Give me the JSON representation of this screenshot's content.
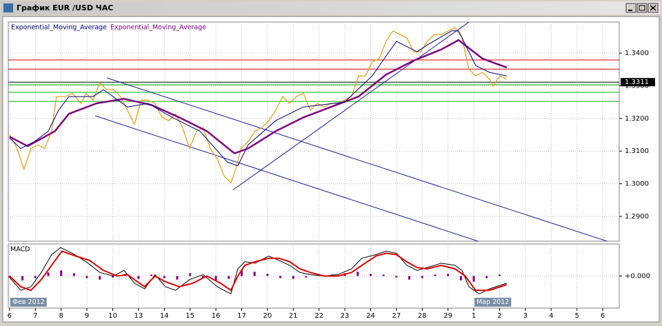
{
  "window": {
    "title": "График EUR /USD ЧАС"
  },
  "chart_data": [
    {
      "type": "line",
      "categories": [
        "6",
        "7",
        "8",
        "9",
        "10",
        "13",
        "14",
        "15",
        "16",
        "17",
        "20",
        "21",
        "22",
        "23",
        "24",
        "27",
        "28",
        "29",
        "1",
        "2",
        "3",
        "4",
        "5",
        "6"
      ],
      "xlim": [
        -0.05,
        23.64
      ],
      "ylim": [
        1.2824,
        1.3495
      ],
      "yticks": [
        {
          "value": 1.34,
          "label": "1.3400"
        },
        {
          "value": 1.33,
          "label": "1.3300"
        },
        {
          "value": 1.32,
          "label": "1.3200"
        },
        {
          "value": 1.31,
          "label": "1.3100"
        },
        {
          "value": 1.3,
          "label": "1.3000"
        },
        {
          "value": 1.29,
          "label": "1.2900"
        }
      ],
      "grid": true,
      "last_price": 1.3311,
      "series": [
        {
          "name": "Exponential_Moving_Average",
          "color": "#000080",
          "x": [
            0,
            0.43,
            0.96,
            1.5,
            1.9,
            2.3,
            3.24,
            3.64,
            4.57,
            5.37,
            6.31,
            7.38,
            8.45,
            8.85,
            9.25,
            10.32,
            11.39,
            12.99,
            14.06,
            15,
            15.8,
            16.2,
            17.14,
            17.41,
            18.07,
            18.61,
            19.28
          ],
          "values": [
            1.314,
            1.3108,
            1.3129,
            1.3161,
            1.3225,
            1.3267,
            1.3267,
            1.3288,
            1.3235,
            1.3246,
            1.3203,
            1.3161,
            1.3066,
            1.3055,
            1.3119,
            1.3193,
            1.3235,
            1.325,
            1.333,
            1.3436,
            1.3404,
            1.3425,
            1.3468,
            1.3468,
            1.3362,
            1.3341,
            1.333
          ]
        },
        {
          "name": "Exponential_Moving_Average",
          "color": "#800080",
          "x": [
            0,
            0.7,
            1.76,
            2.3,
            3.37,
            4.44,
            5.51,
            6.58,
            7.65,
            8.72,
            9.25,
            10.32,
            11.39,
            12.46,
            13.53,
            14.6,
            15.67,
            16.74,
            17.41,
            18.34,
            19.28
          ],
          "values": [
            1.3144,
            1.3115,
            1.3161,
            1.3214,
            1.3246,
            1.326,
            1.3241,
            1.3203,
            1.3161,
            1.3093,
            1.3108,
            1.3161,
            1.3203,
            1.3235,
            1.3267,
            1.3334,
            1.3377,
            1.3411,
            1.344,
            1.3383,
            1.3356
          ]
        },
        {
          "color": "#e8a317",
          "x": [
            0,
            0.29,
            0.56,
            0.83,
            1.1,
            1.36,
            1.63,
            1.82,
            2.17,
            2.43,
            2.78,
            2.97,
            3.24,
            3.5,
            3.77,
            4.04,
            4.3,
            4.57,
            4.84,
            5.11,
            5.37,
            5.64,
            5.91,
            6.18,
            6.44,
            6.71,
            6.98,
            7.25,
            7.51,
            7.78,
            8.05,
            8.32,
            8.58,
            8.77,
            8.98,
            9.25,
            9.52,
            9.79,
            10.05,
            10.32,
            10.59,
            10.86,
            11.12,
            11.39,
            11.66,
            11.93,
            12.19,
            12.46,
            12.73,
            12.99,
            13.26,
            13.53,
            13.8,
            14.06,
            14.33,
            14.6,
            14.87,
            15.13,
            15.4,
            15.67,
            15.94,
            16.2,
            16.47,
            16.74,
            17.01,
            17.27,
            17.54,
            17.81,
            18.07,
            18.34,
            18.61,
            18.74,
            19.01,
            19.28
          ],
          "values": [
            1.3151,
            1.3108,
            1.3045,
            1.3108,
            1.3119,
            1.3108,
            1.3161,
            1.3267,
            1.3267,
            1.3277,
            1.3246,
            1.3277,
            1.3256,
            1.3309,
            1.3288,
            1.3288,
            1.3267,
            1.3225,
            1.3182,
            1.3256,
            1.3256,
            1.3246,
            1.3203,
            1.3193,
            1.3214,
            1.3172,
            1.3108,
            1.3161,
            1.3172,
            1.3108,
            1.3077,
            1.3024,
            1.3003,
            1.3045,
            1.3108,
            1.3129,
            1.3161,
            1.3172,
            1.3193,
            1.3225,
            1.3267,
            1.3246,
            1.3267,
            1.3277,
            1.3225,
            1.3246,
            1.3235,
            1.3246,
            1.3246,
            1.3256,
            1.3267,
            1.333,
            1.333,
            1.3373,
            1.3383,
            1.3436,
            1.3468,
            1.3457,
            1.3447,
            1.3404,
            1.3404,
            1.3436,
            1.3457,
            1.3457,
            1.3468,
            1.3478,
            1.3447,
            1.3351,
            1.333,
            1.3341,
            1.332,
            1.3299,
            1.333,
            1.332
          ]
        }
      ],
      "hlines": [
        {
          "value": 1.3379,
          "color": "#d00000"
        },
        {
          "value": 1.3351,
          "color": "#d00000"
        },
        {
          "value": 1.3311,
          "color": "#000000"
        },
        {
          "value": 1.3303,
          "color": "#00b000"
        },
        {
          "value": 1.328,
          "color": "#00b000"
        },
        {
          "value": 1.3252,
          "color": "#00b000"
        }
      ],
      "trendlines": [
        {
          "color": "#1a1aa0",
          "x": [
            3.77,
            23.21
          ],
          "values": [
            1.3324,
            1.2823
          ]
        },
        {
          "color": "#1a1aa0",
          "x": [
            3.32,
            18.21
          ],
          "values": [
            1.3208,
            1.2823
          ]
        },
        {
          "color": "#1a1aa0",
          "x": [
            8.66,
            17.81
          ],
          "values": [
            1.2981,
            1.3495
          ]
        }
      ]
    },
    {
      "type": "macd",
      "title": "MACD",
      "xlim": [
        -0.05,
        23.64
      ],
      "ylim": [
        -0.0035,
        0.0035
      ],
      "yticks": [
        {
          "value": 0,
          "label": "+0.000"
        }
      ],
      "month_labels": [
        {
          "label": "Фев 2012",
          "x": 0
        },
        {
          "label": "Мар 2012",
          "x": 18
        }
      ],
      "series": [
        {
          "kind": "histogram",
          "color": "#800080",
          "x": [
            0,
            0.5,
            1,
            1.5,
            2,
            2.5,
            3,
            3.5,
            4,
            4.5,
            5,
            5.5,
            6,
            6.5,
            7,
            7.5,
            8,
            8.5,
            9,
            9.5,
            10,
            10.5,
            11,
            11.5,
            12,
            12.5,
            13,
            13.5,
            14,
            14.5,
            15,
            15.5,
            16,
            16.5,
            17,
            17.5,
            18,
            18.5,
            19
          ],
          "values": [
            -0.00016,
            -0.00047,
            -0.00023,
            0.00039,
            0.00062,
            0.00031,
            -0.00023,
            -0.00039,
            -0.00016,
            0.00023,
            -0.00031,
            0.00016,
            -0.00023,
            -0.00039,
            0.00031,
            -0.00016,
            -0.00047,
            -0.00031,
            0.00062,
            0.00047,
            0.00023,
            -0.00023,
            -0.00031,
            -0.00016,
            8e-05,
            0.00016,
            0.00031,
            0.00047,
            0.00023,
            0.00016,
            -0.00016,
            -0.00039,
            -0.00023,
            0.00016,
            0.00023,
            -0.00047,
            -0.00062,
            -0.00023,
            0.00016
          ]
        },
        {
          "kind": "line",
          "color": "#000000",
          "x": [
            0,
            0.43,
            0.83,
            1.23,
            1.63,
            1.98,
            2.43,
            2.97,
            3.5,
            4.04,
            4.44,
            4.84,
            5.24,
            5.64,
            6.04,
            6.44,
            6.98,
            7.51,
            8.05,
            8.58,
            8.85,
            9.12,
            9.52,
            10.05,
            10.45,
            10.86,
            11.26,
            11.66,
            12.19,
            12.73,
            13.26,
            13.66,
            14.2,
            14.6,
            15,
            15.4,
            15.8,
            16.2,
            16.74,
            17.27,
            17.54,
            17.81,
            18.21,
            18.61,
            19.28
          ],
          "values": [
            -0.00016,
            -0.00156,
            -0.00117,
            0.00039,
            0.00233,
            0.00311,
            0.00249,
            0.00156,
            0.00039,
            0,
            0.00062,
            -0.00078,
            -0.0014,
            0.00016,
            -0.00117,
            -0.00156,
            -0.00039,
            0.00016,
            -0.00117,
            -0.00195,
            0.00078,
            0.00156,
            0.0014,
            0.00218,
            0.00171,
            0.00117,
            0.00039,
            0.00016,
            0,
            0.00016,
            0.00078,
            0.00194,
            0.00233,
            0.00272,
            0.00249,
            0.00117,
            0.00062,
            0.00093,
            0.0014,
            0.00117,
            0.00062,
            -0.00117,
            -0.00195,
            -0.0014,
            -0.00078
          ]
        },
        {
          "kind": "line",
          "color": "#e00000",
          "x": [
            0,
            0.43,
            0.83,
            1.23,
            1.63,
            2.03,
            2.57,
            3.1,
            3.64,
            4.17,
            4.57,
            4.84,
            5.24,
            5.64,
            6.04,
            6.58,
            7.11,
            7.65,
            8.18,
            8.58,
            8.85,
            9.12,
            9.52,
            10.05,
            10.45,
            10.86,
            11.26,
            11.66,
            12.19,
            12.73,
            13.26,
            13.66,
            14.2,
            14.6,
            15,
            15.4,
            15.8,
            16.2,
            16.74,
            17.27,
            17.67,
            18.07,
            18.61,
            19.28
          ],
          "values": [
            0,
            -0.00117,
            -0.00156,
            -0.00039,
            0.00117,
            0.00272,
            0.00218,
            0.00171,
            0.00062,
            0,
            0.00016,
            -0.00039,
            -0.00117,
            0,
            -0.00062,
            -0.00117,
            -0.00078,
            0,
            -0.00078,
            -0.00156,
            0,
            0.00117,
            0.00156,
            0.00194,
            0.00194,
            0.00156,
            0.00078,
            0.00039,
            0,
            0,
            0.00039,
            0.00117,
            0.00218,
            0.00249,
            0.00233,
            0.00156,
            0.00093,
            0.00078,
            0.00117,
            0.00078,
            0,
            -0.00156,
            -0.00156,
            -0.00093
          ]
        }
      ]
    }
  ]
}
